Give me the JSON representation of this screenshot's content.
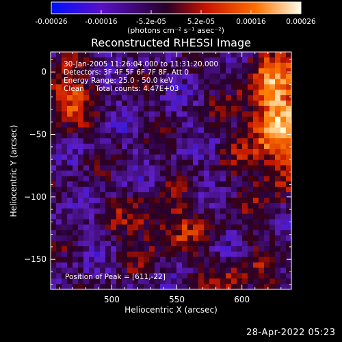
{
  "chart_data": {
    "type": "heatmap",
    "title": "Reconstructed RHESSI Image",
    "xlabel": "Heliocentric X (arcsec)",
    "ylabel": "Heliocentric Y (arcsec)",
    "xlim": [
      453,
      638
    ],
    "ylim": [
      -174,
      16
    ],
    "xticks": [
      500,
      550,
      600
    ],
    "xtick_labels": [
      "500",
      "550",
      "600"
    ],
    "yticks": [
      0,
      -50,
      -100,
      -150
    ],
    "ytick_labels": [
      "0",
      "−50",
      "−100",
      "−150"
    ],
    "colorbar": {
      "range": [
        -0.00026,
        0.00026
      ],
      "tick_labels": [
        "-0.00026",
        "-0.00016",
        "-5.2e-05",
        "5.2e-05",
        "0.00016",
        "0.00026"
      ],
      "unit_label": "(photons cm⁻² s⁻¹ asec⁻²)",
      "colors": [
        "#0010ff",
        "#5a10c8",
        "#280028",
        "#c81400",
        "#ff7000",
        "#ffffe8"
      ]
    },
    "annotations": [
      "30-Jan-2005 11:26:04.000 to 11:31:20.000",
      "Detectors: 3F 4F 5F 6F 7F 8F, Att 0",
      "Energy Range: 25.0 - 50.0 keV",
      "Clean     Total counts: 4.47E+03"
    ],
    "peak_label": "Position of Peak = [611,-22]",
    "peak_position": [
      611,
      -22
    ]
  },
  "footer": {
    "timestamp": "28-Apr-2022 05:23"
  }
}
